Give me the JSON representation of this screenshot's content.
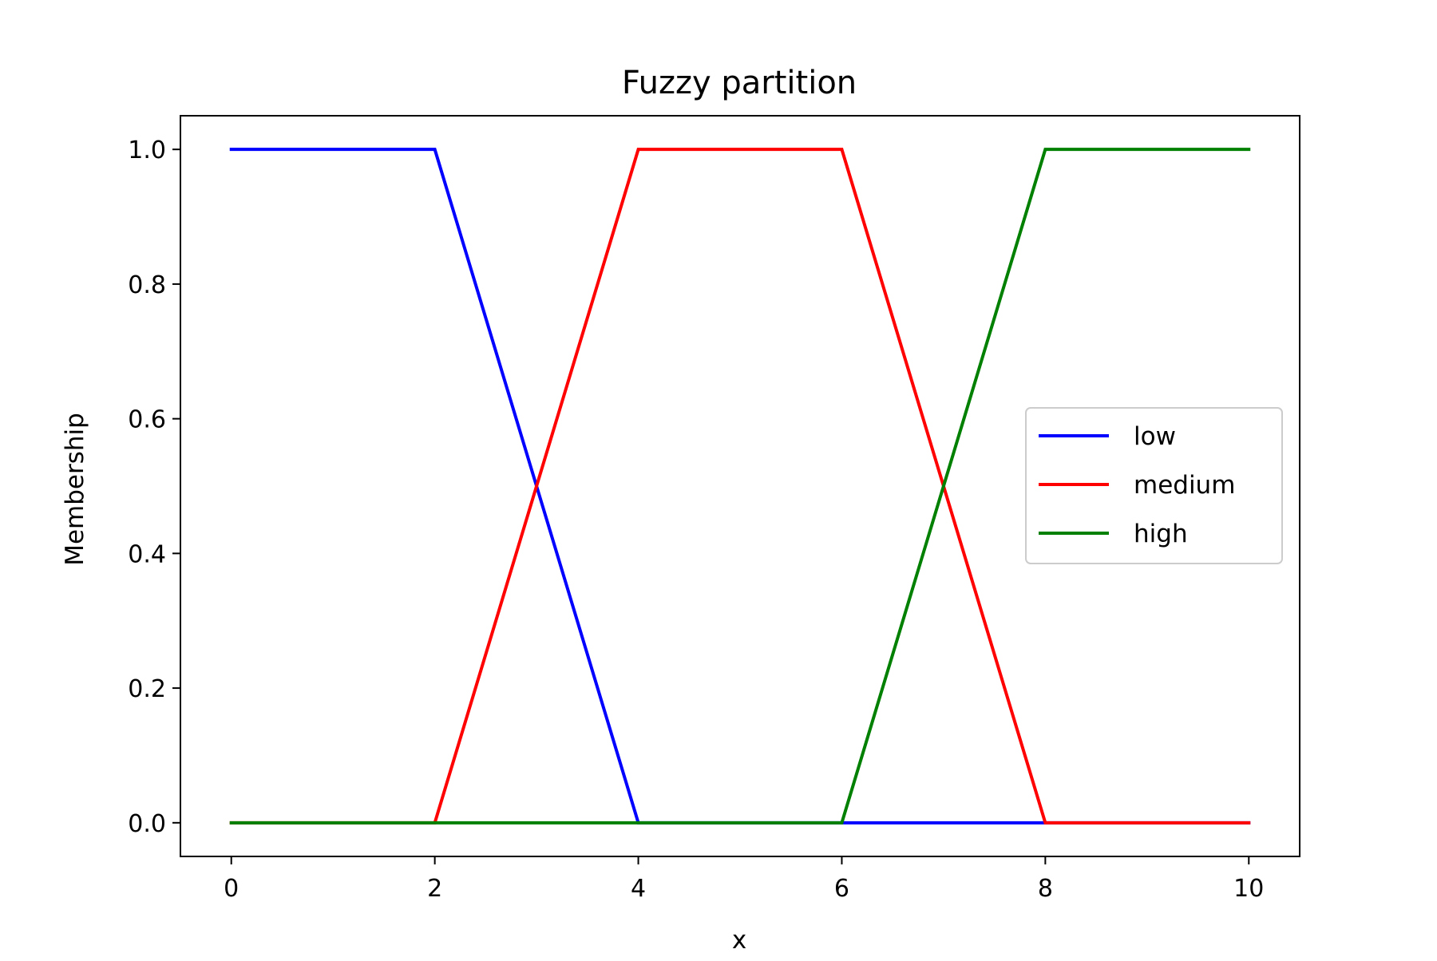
{
  "chart_data": {
    "type": "line",
    "title": "Fuzzy partition",
    "xlabel": "x",
    "ylabel": "Membership",
    "xlim": [
      -0.5,
      10.5
    ],
    "ylim": [
      -0.05,
      1.05
    ],
    "xticks": [
      0,
      2,
      4,
      6,
      8,
      10
    ],
    "xtick_labels": [
      "0",
      "2",
      "4",
      "6",
      "8",
      "10"
    ],
    "yticks": [
      0.0,
      0.2,
      0.4,
      0.6,
      0.8,
      1.0
    ],
    "ytick_labels": [
      "0.0",
      "0.2",
      "0.4",
      "0.6",
      "0.8",
      "1.0"
    ],
    "grid": false,
    "legend": {
      "placement": "center-right",
      "entries": [
        "low",
        "medium",
        "high"
      ]
    },
    "series": [
      {
        "name": "low",
        "color": "#0000ff",
        "x": [
          0,
          2,
          4,
          6,
          8,
          10
        ],
        "y": [
          1.0,
          1.0,
          0.0,
          0.0,
          0.0,
          0.0
        ]
      },
      {
        "name": "medium",
        "color": "#ff0000",
        "x": [
          0,
          2,
          4,
          6,
          8,
          10
        ],
        "y": [
          0.0,
          0.0,
          1.0,
          1.0,
          0.0,
          0.0
        ]
      },
      {
        "name": "high",
        "color": "#008000",
        "x": [
          0,
          2,
          4,
          6,
          8,
          10
        ],
        "y": [
          0.0,
          0.0,
          0.0,
          0.0,
          1.0,
          1.0
        ]
      }
    ]
  }
}
